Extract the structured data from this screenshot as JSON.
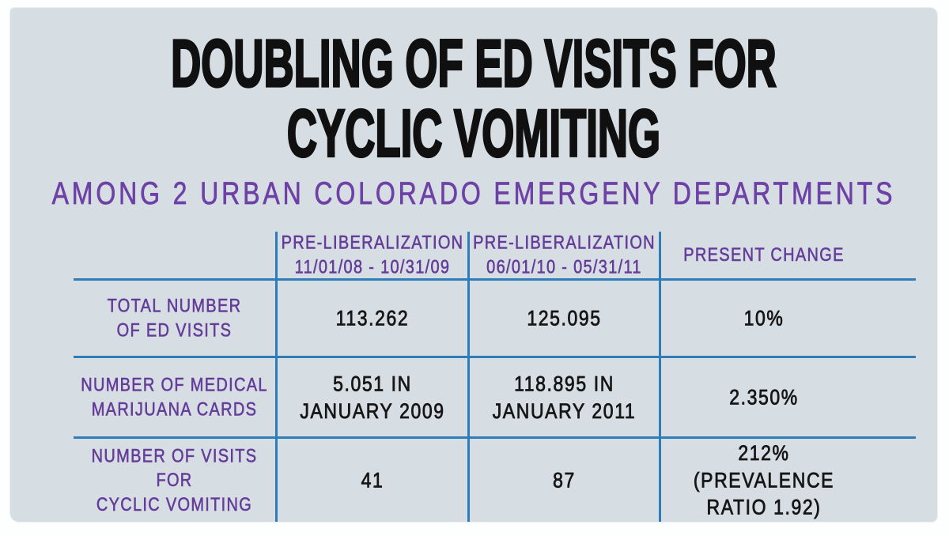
{
  "page": {
    "title_line1": "DOUBLING OF ED VISITS FOR",
    "title_line2": "CYCLIC VOMITING",
    "title": "DOUBLING OF ED VISITS FOR CYCLIC VOMITING",
    "subtitle": "AMONG 2 URBAN COLORADO EMERGENY DEPARTMENTS"
  },
  "colors": {
    "panel_background": "#d6dde3",
    "outer_border": "#fdfefe",
    "title_black": "#101010",
    "purple_text": "#643c99",
    "grid_line_blue": "#2e7cb8",
    "value_black": "#161616"
  },
  "table": {
    "headers": {
      "period1": "PRE-LIBERALIZATION\n11/01/08 - 10/31/09",
      "period2": "PRE-LIBERALIZATION\n06/01/10 - 05/31/11",
      "change": "PRESENT CHANGE"
    },
    "rows": [
      {
        "label": "TOTAL NUMBER\nOF ED VISITS",
        "period1": "113.262",
        "period2": "125.095",
        "change": "10%"
      },
      {
        "label": "NUMBER OF MEDICAL\nMARIJUANA CARDS",
        "period1": "5.051 IN\nJANUARY 2009",
        "period2": "118.895 IN\nJANUARY 2011",
        "change": "2.350%"
      },
      {
        "label": "NUMBER OF VISITS FOR\nCYCLIC VOMITING",
        "period1": "41",
        "period2": "87",
        "change": "212%\n(PREVALENCE RATIO 1.92)"
      }
    ]
  },
  "chart_data": {
    "type": "table",
    "title": "DOUBLING OF ED VISITS FOR CYCLIC VOMITING",
    "subtitle": "AMONG 2 URBAN COLORADO EMERGENY DEPARTMENTS",
    "columns": [
      "",
      "PRE-LIBERALIZATION 11/01/08 - 10/31/09",
      "PRE-LIBERALIZATION 06/01/10 - 05/31/11",
      "PRESENT CHANGE"
    ],
    "rows": [
      [
        "TOTAL NUMBER OF ED VISITS",
        "113.262",
        "125.095",
        "10%"
      ],
      [
        "NUMBER OF MEDICAL MARIJUANA CARDS",
        "5.051 IN JANUARY 2009",
        "118.895 IN JANUARY 2011",
        "2.350%"
      ],
      [
        "NUMBER OF VISITS FOR CYCLIC VOMITING",
        "41",
        "87",
        "212% (PREVALENCE RATIO 1.92)"
      ]
    ]
  }
}
